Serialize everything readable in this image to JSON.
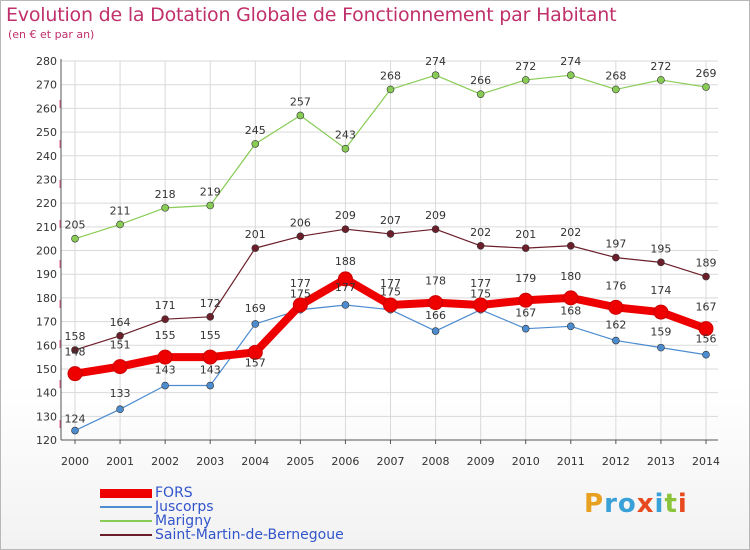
{
  "header": {
    "title": "Evolution de la Dotation Globale de Fonctionnement par Habitant",
    "subtitle": "(en € et par an)"
  },
  "logo": {
    "text": "Proxiti"
  },
  "chart_data": {
    "type": "line",
    "categories": [
      "2000",
      "2001",
      "2002",
      "2003",
      "2004",
      "2005",
      "2006",
      "2007",
      "2008",
      "2009",
      "2010",
      "2011",
      "2012",
      "2013",
      "2014"
    ],
    "ylim": [
      120,
      280
    ],
    "yticks": [
      120,
      130,
      140,
      150,
      160,
      170,
      180,
      190,
      200,
      210,
      220,
      230,
      240,
      250,
      260,
      270,
      280
    ],
    "grid": true,
    "legend_position": "bottom-left",
    "series": [
      {
        "name": "FORS",
        "color": "#ee0000",
        "values": [
          148,
          151,
          155,
          155,
          157,
          177,
          188,
          177,
          178,
          177,
          179,
          180,
          176,
          174,
          167
        ]
      },
      {
        "name": "Juscorps",
        "color": "#4d8ccf",
        "values": [
          124,
          133,
          143,
          143,
          169,
          175,
          177,
          175,
          166,
          175,
          167,
          168,
          162,
          159,
          156
        ]
      },
      {
        "name": "Marigny",
        "color": "#88cc55",
        "values": [
          205,
          211,
          218,
          219,
          245,
          257,
          243,
          268,
          274,
          266,
          272,
          274,
          268,
          272,
          269
        ]
      },
      {
        "name": "Saint-Martin-de-Bernegoue",
        "color": "#6b1f2a",
        "values": [
          158,
          164,
          171,
          172,
          201,
          206,
          209,
          207,
          209,
          202,
          201,
          202,
          197,
          195,
          189
        ]
      }
    ]
  }
}
